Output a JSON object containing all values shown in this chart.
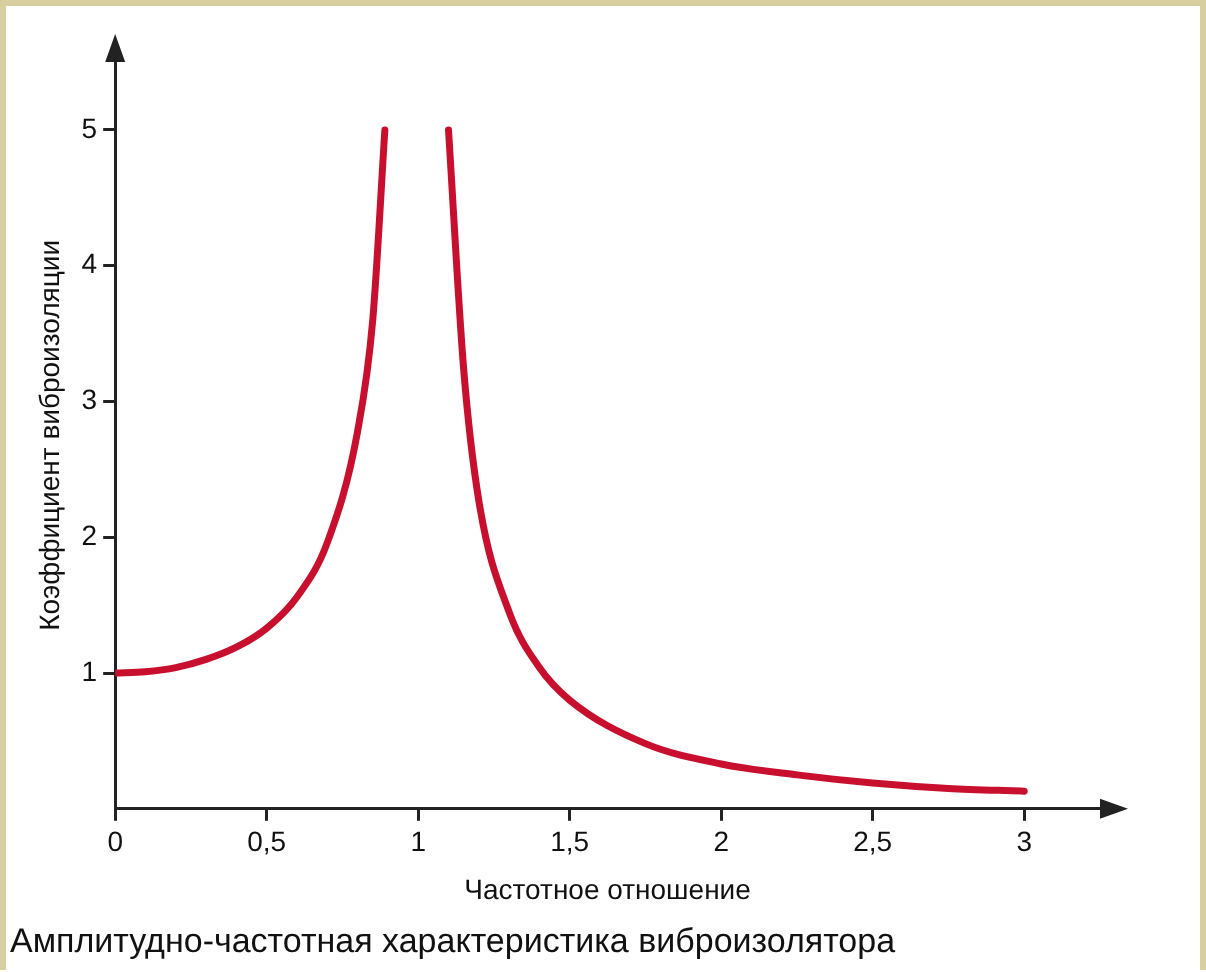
{
  "chart_data": {
    "type": "line",
    "xlabel": "Частотное отношение",
    "ylabel": "Коэффициент виброизоляции",
    "annotations": [
      "Амплитудно-частотная характеристика виброизолятора"
    ],
    "series": [
      {
        "color": "#c8102e",
        "x": [
          0,
          0.1,
          0.2,
          0.3,
          0.4,
          0.5,
          0.6,
          0.7,
          0.8,
          0.85,
          0.89,
          null,
          1.1,
          1.15,
          1.2,
          1.3,
          1.4,
          1.5,
          1.75,
          2,
          2.25,
          2.5,
          2.75,
          3
        ],
        "values": [
          1,
          1.01,
          1.04,
          1.1,
          1.19,
          1.33,
          1.56,
          1.96,
          2.78,
          3.6,
          5,
          null,
          5,
          3.24,
          2.27,
          1.45,
          1.04,
          0.8,
          0.48,
          0.33,
          0.25,
          0.19,
          0.15,
          0.13
        ]
      }
    ],
    "xlim": [
      0,
      3.25
    ],
    "ylim": [
      0,
      5.5
    ],
    "xticks": [
      0,
      {
        "value": 0.5,
        "label": "0,5"
      },
      1,
      {
        "value": 1.5,
        "label": "1,5"
      },
      2,
      {
        "value": 2.5,
        "label": "2,5"
      },
      3
    ],
    "yticks": [
      1,
      2,
      3,
      4,
      5
    ],
    "marker": "none",
    "line_style": "solid",
    "legend": false
  }
}
